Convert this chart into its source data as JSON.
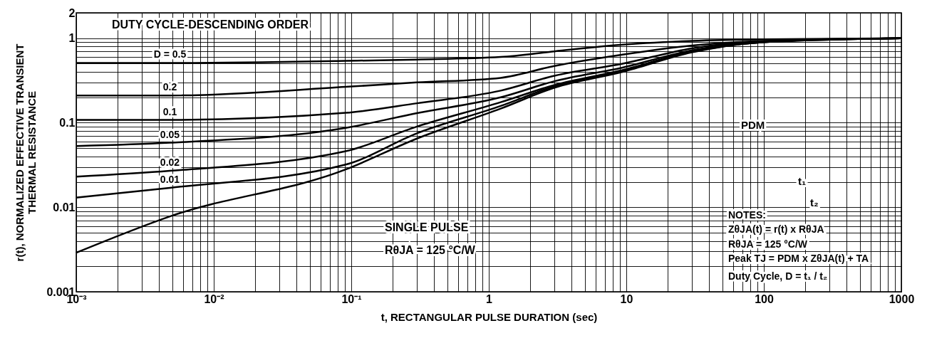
{
  "chart_data": {
    "type": "line",
    "xlabel": "t, RECTANGULAR PULSE DURATION (sec)",
    "ylabel": "r(t), NORMALIZED EFFECTIVE TRANSIENT\nTHERMAL RESISTANCE",
    "log": "xy",
    "grid": true,
    "marker": "none",
    "line_style": "solid",
    "xlim": [
      0.001,
      1000
    ],
    "ylim": [
      0.001,
      2
    ],
    "xticks": [
      {
        "value": 0.001,
        "label": "10⁻³"
      },
      {
        "value": 0.002,
        "label": null
      },
      {
        "value": 0.003,
        "label": null
      },
      {
        "value": 0.004,
        "label": null
      },
      {
        "value": 0.005,
        "label": null
      },
      {
        "value": 0.006,
        "label": null
      },
      {
        "value": 0.007,
        "label": null
      },
      {
        "value": 0.008,
        "label": null
      },
      {
        "value": 0.009,
        "label": null
      },
      {
        "value": 0.01,
        "label": "10⁻²"
      },
      {
        "value": 0.02,
        "label": null
      },
      {
        "value": 0.03,
        "label": null
      },
      {
        "value": 0.04,
        "label": null
      },
      {
        "value": 0.05,
        "label": null
      },
      {
        "value": 0.06,
        "label": null
      },
      {
        "value": 0.07,
        "label": null
      },
      {
        "value": 0.08,
        "label": null
      },
      {
        "value": 0.09,
        "label": null
      },
      {
        "value": 0.1,
        "label": "10⁻¹"
      },
      {
        "value": 0.2,
        "label": null
      },
      {
        "value": 0.3,
        "label": null
      },
      {
        "value": 0.4,
        "label": null
      },
      {
        "value": 0.5,
        "label": null
      },
      {
        "value": 0.6,
        "label": null
      },
      {
        "value": 0.7,
        "label": null
      },
      {
        "value": 0.8,
        "label": null
      },
      {
        "value": 0.9,
        "label": null
      },
      1,
      {
        "value": 2,
        "label": null
      },
      {
        "value": 3,
        "label": null
      },
      {
        "value": 4,
        "label": null
      },
      {
        "value": 5,
        "label": null
      },
      {
        "value": 6,
        "label": null
      },
      {
        "value": 7,
        "label": null
      },
      {
        "value": 8,
        "label": null
      },
      {
        "value": 9,
        "label": null
      },
      10,
      {
        "value": 20,
        "label": null
      },
      {
        "value": 30,
        "label": null
      },
      {
        "value": 40,
        "label": null
      },
      {
        "value": 50,
        "label": null
      },
      {
        "value": 60,
        "label": null
      },
      {
        "value": 70,
        "label": null
      },
      {
        "value": 80,
        "label": null
      },
      {
        "value": 90,
        "label": null
      },
      100,
      {
        "value": 200,
        "label": null
      },
      {
        "value": 300,
        "label": null
      },
      {
        "value": 400,
        "label": null
      },
      {
        "value": 500,
        "label": null
      },
      {
        "value": 600,
        "label": null
      },
      {
        "value": 700,
        "label": null
      },
      {
        "value": 800,
        "label": null
      },
      {
        "value": 900,
        "label": null
      },
      1000
    ],
    "yticks": [
      0.001,
      {
        "value": 0.002,
        "label": null
      },
      {
        "value": 0.003,
        "label": null
      },
      {
        "value": 0.004,
        "label": null
      },
      {
        "value": 0.005,
        "label": null
      },
      {
        "value": 0.006,
        "label": null
      },
      {
        "value": 0.007,
        "label": null
      },
      {
        "value": 0.008,
        "label": null
      },
      {
        "value": 0.009,
        "label": null
      },
      0.01,
      {
        "value": 0.02,
        "label": null
      },
      {
        "value": 0.03,
        "label": null
      },
      {
        "value": 0.04,
        "label": null
      },
      {
        "value": 0.05,
        "label": null
      },
      {
        "value": 0.06,
        "label": null
      },
      {
        "value": 0.07,
        "label": null
      },
      {
        "value": 0.08,
        "label": null
      },
      {
        "value": 0.09,
        "label": null
      },
      0.1,
      {
        "value": 0.2,
        "label": null
      },
      {
        "value": 0.3,
        "label": null
      },
      {
        "value": 0.4,
        "label": null
      },
      {
        "value": 0.5,
        "label": null
      },
      {
        "value": 0.6,
        "label": null
      },
      {
        "value": 0.7,
        "label": null
      },
      {
        "value": 0.8,
        "label": null
      },
      {
        "value": 0.9,
        "label": null
      },
      1,
      2
    ],
    "x": [
      0.001,
      0.0048,
      0.091,
      0.3,
      1.22,
      3,
      9.4,
      30,
      100,
      1000
    ],
    "series": [
      {
        "name": "D = 0.5",
        "color": "#000000",
        "values": [
          0.51,
          0.51,
          0.54,
          0.56,
          0.6,
          0.7,
          0.84,
          0.93,
          0.97,
          1.0
        ]
      },
      {
        "name": "0.2",
        "color": "#000000",
        "values": [
          0.21,
          0.21,
          0.266,
          0.3,
          0.34,
          0.47,
          0.64,
          0.82,
          0.93,
          1.0
        ]
      },
      {
        "name": "0.1",
        "color": "#000000",
        "values": [
          0.108,
          0.108,
          0.131,
          0.17,
          0.24,
          0.36,
          0.5,
          0.76,
          0.92,
          1.0
        ]
      },
      {
        "name": "0.05",
        "color": "#000000",
        "values": [
          0.053,
          0.058,
          0.087,
          0.13,
          0.2,
          0.31,
          0.45,
          0.72,
          0.91,
          1.0
        ]
      },
      {
        "name": "0.02",
        "color": "#000000",
        "values": [
          0.023,
          0.027,
          0.046,
          0.09,
          0.175,
          0.28,
          0.42,
          0.7,
          0.9,
          1.0
        ]
      },
      {
        "name": "0.01",
        "color": "#000000",
        "values": [
          0.013,
          0.017,
          0.032,
          0.075,
          0.158,
          0.27,
          0.41,
          0.69,
          0.9,
          1.0
        ]
      },
      {
        "color": "#000000",
        "values": [
          0.0029,
          0.0078,
          0.028,
          0.065,
          0.147,
          0.26,
          0.4,
          0.68,
          0.9,
          1.0
        ]
      }
    ],
    "annotations": [
      "DUTY CYCLE-DESCENDING ORDER",
      "SINGLE PULSE",
      "RθJA = 125 °C/W",
      "PDM",
      "t₁",
      "t₂",
      "NOTES:",
      "ZθJA(t) = r(t) x RθJA",
      "RθJA = 125 °C/W",
      "Peak TJ = PDM x ZθJA(t) + TA",
      "Duty Cycle, D = t₁ / t₂"
    ]
  }
}
